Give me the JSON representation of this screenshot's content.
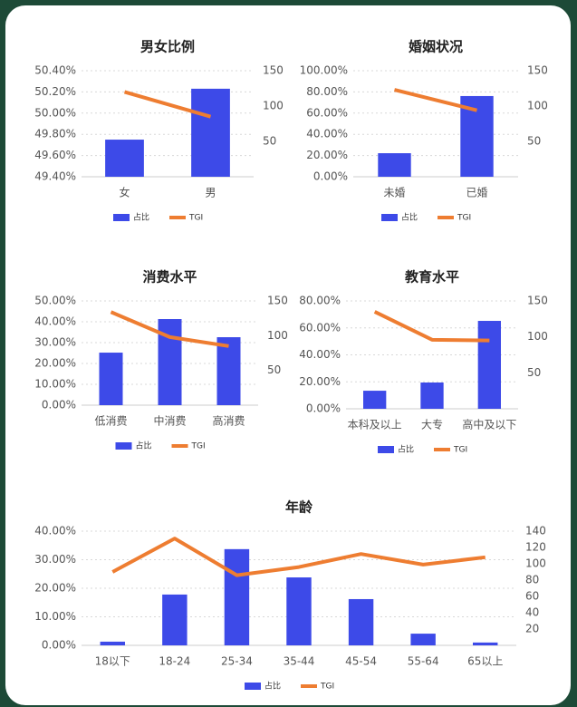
{
  "chart_data": [
    {
      "type": "combo",
      "title": "男女比例",
      "categories": [
        "女",
        "男"
      ],
      "series": [
        {
          "name": "占比",
          "color": "#3d4ae8",
          "values": [
            49.75,
            50.23
          ]
        },
        {
          "name": "TGI",
          "color": "#ee7d31",
          "axis": "y2",
          "values": [
            120,
            85
          ]
        }
      ],
      "ylim": [
        49.4,
        50.4
      ],
      "yticks": [
        {
          "value": 49.4,
          "label": "49.40%"
        },
        {
          "value": 49.6,
          "label": "49.60%"
        },
        {
          "value": 49.8,
          "label": "49.80%"
        },
        {
          "value": 50.0,
          "label": "50.00%"
        },
        {
          "value": 50.2,
          "label": "50.20%"
        },
        {
          "value": 50.4,
          "label": "50.40%"
        }
      ],
      "y2lim": [
        0,
        150
      ],
      "y2ticks": [
        50,
        100,
        150
      ],
      "grid": true,
      "legend": "bottom"
    },
    {
      "type": "combo",
      "title": "婚姻状况",
      "categories": [
        "未婚",
        "已婚"
      ],
      "series": [
        {
          "name": "占比",
          "color": "#3d4ae8",
          "values": [
            22.2,
            76.1
          ]
        },
        {
          "name": "TGI",
          "color": "#ee7d31",
          "axis": "y2",
          "values": [
            123,
            94
          ]
        }
      ],
      "ylim": [
        0,
        100
      ],
      "yticks": [
        {
          "value": 0,
          "label": "0.00%"
        },
        {
          "value": 20,
          "label": "20.00%"
        },
        {
          "value": 40,
          "label": "40.00%"
        },
        {
          "value": 60,
          "label": "60.00%"
        },
        {
          "value": 80,
          "label": "80.00%"
        },
        {
          "value": 100,
          "label": "100.00%"
        }
      ],
      "y2lim": [
        0,
        150
      ],
      "y2ticks": [
        50,
        100,
        150
      ],
      "grid": true,
      "legend": "bottom"
    },
    {
      "type": "combo",
      "title": "消费水平",
      "categories": [
        "低消费",
        "中消费",
        "高消费"
      ],
      "series": [
        {
          "name": "占比",
          "color": "#3d4ae8",
          "values": [
            25.2,
            41.3,
            32.6
          ]
        },
        {
          "name": "TGI",
          "color": "#ee7d31",
          "axis": "y2",
          "values": [
            134,
            98,
            85
          ]
        }
      ],
      "ylim": [
        0,
        50
      ],
      "yticks": [
        {
          "value": 0,
          "label": "0.00%"
        },
        {
          "value": 10,
          "label": "10.00%"
        },
        {
          "value": 20,
          "label": "20.00%"
        },
        {
          "value": 30,
          "label": "30.00%"
        },
        {
          "value": 40,
          "label": "40.00%"
        },
        {
          "value": 50,
          "label": "50.00%"
        }
      ],
      "y2lim": [
        0,
        150
      ],
      "y2ticks": [
        50,
        100,
        150
      ],
      "grid": true,
      "legend": "bottom"
    },
    {
      "type": "combo",
      "title": "教育水平",
      "categories": [
        "本科及以上",
        "大专",
        "高中及以下"
      ],
      "series": [
        {
          "name": "占比",
          "color": "#3d4ae8",
          "values": [
            13.4,
            19.5,
            65.2
          ]
        },
        {
          "name": "TGI",
          "color": "#ee7d31",
          "axis": "y2",
          "values": [
            135,
            96,
            95
          ]
        }
      ],
      "ylim": [
        0,
        80
      ],
      "yticks": [
        {
          "value": 0,
          "label": "0.00%"
        },
        {
          "value": 20,
          "label": "20.00%"
        },
        {
          "value": 40,
          "label": "40.00%"
        },
        {
          "value": 60,
          "label": "60.00%"
        },
        {
          "value": 80,
          "label": "80.00%"
        }
      ],
      "y2lim": [
        0,
        150
      ],
      "y2ticks": [
        50,
        100,
        150
      ],
      "grid": true,
      "legend": "bottom"
    },
    {
      "type": "combo",
      "title": "年龄",
      "categories": [
        "18以下",
        "18-24",
        "25-34",
        "35-44",
        "45-54",
        "55-64",
        "65以上"
      ],
      "series": [
        {
          "name": "占比",
          "color": "#3d4ae8",
          "values": [
            1.3,
            17.8,
            33.7,
            23.8,
            16.2,
            4.1,
            1.0
          ]
        },
        {
          "name": "TGI",
          "color": "#ee7d31",
          "axis": "y2",
          "values": [
            90,
            131,
            86,
            96,
            112,
            99,
            108
          ]
        }
      ],
      "ylim": [
        0,
        40
      ],
      "yticks": [
        {
          "value": 0,
          "label": "0.00%"
        },
        {
          "value": 10,
          "label": "10.00%"
        },
        {
          "value": 20,
          "label": "20.00%"
        },
        {
          "value": 30,
          "label": "30.00%"
        },
        {
          "value": 40,
          "label": "40.00%"
        }
      ],
      "y2lim": [
        0,
        140
      ],
      "y2ticks": [
        20,
        40,
        60,
        80,
        100,
        120,
        140
      ],
      "grid": true,
      "legend": "bottom"
    }
  ]
}
